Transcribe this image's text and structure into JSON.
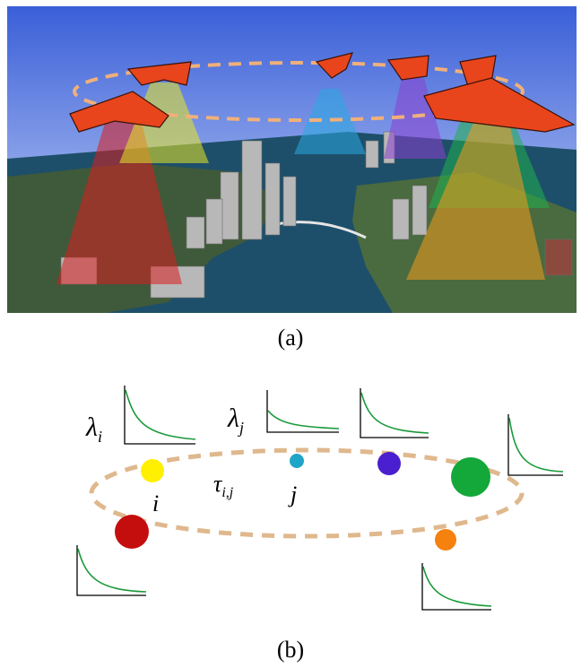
{
  "captions": {
    "a": "(a)",
    "b": "(b)"
  },
  "scene": {
    "beam_colors": [
      "#d81e1e",
      "#e8e824",
      "#2aa9e0",
      "#8a3fd0",
      "#1fb04a",
      "#f39a1a"
    ],
    "orbit_color": "#f0b07a",
    "uav_color": "#e8451c"
  },
  "diagram": {
    "labels": {
      "lambda_i_base": "λ",
      "lambda_i_sub": "i",
      "lambda_j_base": "λ",
      "lambda_j_sub": "j",
      "tau_base": "τ",
      "tau_sub": "i,j",
      "node_i": "i",
      "node_j": "j"
    },
    "orbit_color": "#dfb88d",
    "curve_color": "#1a9a3a",
    "nodes": [
      {
        "id": "red",
        "color": "#c40e0e"
      },
      {
        "id": "yellow",
        "color": "#ffef00"
      },
      {
        "id": "cyan",
        "color": "#1fa5c8"
      },
      {
        "id": "blue",
        "color": "#4a1fd0"
      },
      {
        "id": "green",
        "color": "#14a83a"
      },
      {
        "id": "orange",
        "color": "#f5820f"
      }
    ]
  }
}
